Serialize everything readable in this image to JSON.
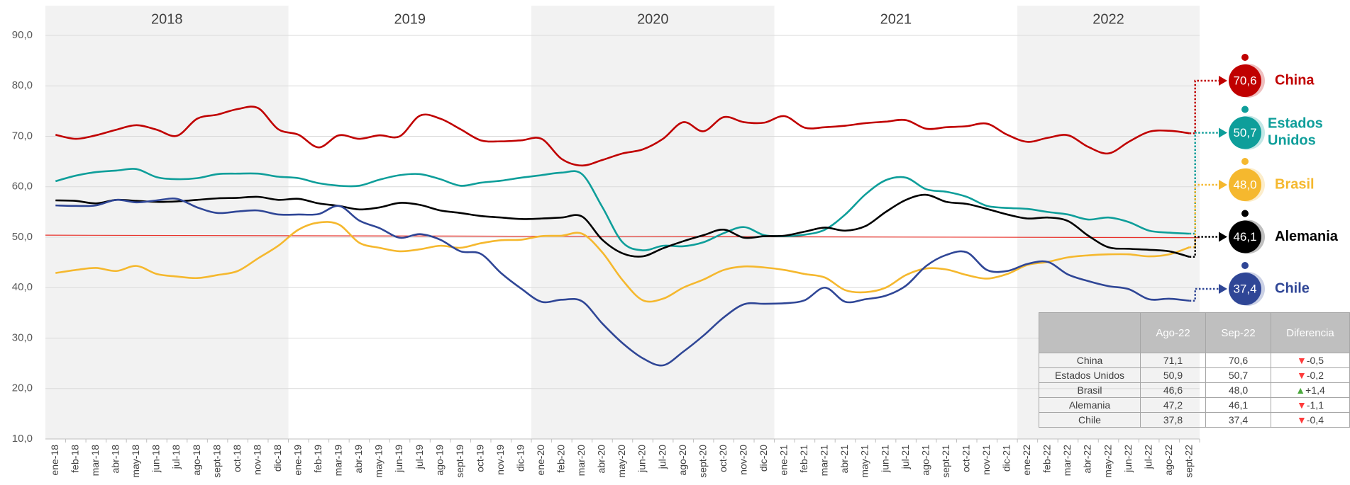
{
  "chart_data": {
    "type": "line",
    "categories": [
      "ene-18",
      "feb-18",
      "mar-18",
      "abr-18",
      "may-18",
      "jun-18",
      "jul-18",
      "ago-18",
      "sept-18",
      "oct-18",
      "nov-18",
      "dic-18",
      "ene-19",
      "feb-19",
      "mar-19",
      "abr-19",
      "may-19",
      "jun-19",
      "jul-19",
      "ago-19",
      "sept-19",
      "oct-19",
      "nov-19",
      "dic-19",
      "ene-20",
      "feb-20",
      "mar-20",
      "abr-20",
      "may-20",
      "jun-20",
      "jul-20",
      "ago-20",
      "sept-20",
      "oct-20",
      "nov-20",
      "dic-20",
      "ene-21",
      "feb-21",
      "mar-21",
      "abr-21",
      "may-21",
      "jun-21",
      "jul-21",
      "ago-21",
      "sept-21",
      "oct-21",
      "nov-21",
      "dic-21",
      "ene-22",
      "feb-22",
      "mar-22",
      "abr-22",
      "may-22",
      "jun-22",
      "jul-22",
      "ago-22",
      "sept-22"
    ],
    "year_bands": [
      {
        "label": "2018",
        "shaded": true
      },
      {
        "label": "2019",
        "shaded": false
      },
      {
        "label": "2020",
        "shaded": true
      },
      {
        "label": "2021",
        "shaded": false
      },
      {
        "label": "2022",
        "shaded": true
      }
    ],
    "ylim": [
      10,
      90
    ],
    "yticks": [
      {
        "value": 10,
        "label": "10,0"
      },
      {
        "value": 20,
        "label": "20,0"
      },
      {
        "value": 30,
        "label": "30,0"
      },
      {
        "value": 40,
        "label": "40,0"
      },
      {
        "value": 50,
        "label": "50,0"
      },
      {
        "value": 60,
        "label": "60,0"
      },
      {
        "value": 70,
        "label": "70,0"
      },
      {
        "value": 80,
        "label": "80,0"
      },
      {
        "value": 90,
        "label": "90,0"
      }
    ],
    "grid": true,
    "reference_line": {
      "color": "#e8312a",
      "values": [
        50.4,
        49.9
      ]
    },
    "series": [
      {
        "name": "China",
        "color": "#c00000",
        "last_label": "70,6",
        "values": [
          70.3,
          69.5,
          70.2,
          71.3,
          72.2,
          71.3,
          70.1,
          73.5,
          74.3,
          75.4,
          75.6,
          71.4,
          70.3,
          67.8,
          70.2,
          69.5,
          70.2,
          70.0,
          74.1,
          73.5,
          71.4,
          69.2,
          69.0,
          69.2,
          69.5,
          65.5,
          64.2,
          65.3,
          66.6,
          67.4,
          69.5,
          72.8,
          71.0,
          73.8,
          72.8,
          72.7,
          74.0,
          71.7,
          71.8,
          72.1,
          72.6,
          72.9,
          73.2,
          71.5,
          71.8,
          72.0,
          72.5,
          70.3,
          68.9,
          69.7,
          70.2,
          67.9,
          66.6,
          68.9,
          70.9,
          71.1,
          70.6
        ]
      },
      {
        "name": "Estados Unidos",
        "color": "#0e9e9a",
        "last_label": "50,7",
        "values": [
          61.1,
          62.2,
          62.9,
          63.2,
          63.5,
          61.9,
          61.5,
          61.7,
          62.5,
          62.6,
          62.6,
          62.0,
          61.7,
          60.7,
          60.2,
          60.2,
          61.4,
          62.3,
          62.5,
          61.5,
          60.2,
          60.8,
          61.2,
          61.8,
          62.3,
          62.8,
          62.5,
          56.0,
          49.0,
          47.4,
          48.3,
          48.2,
          49.0,
          50.8,
          52.0,
          50.4,
          50.2,
          50.5,
          51.5,
          54.5,
          58.5,
          61.3,
          61.8,
          59.5,
          59.0,
          58.0,
          56.2,
          55.8,
          55.6,
          55.0,
          54.5,
          53.5,
          53.9,
          53.0,
          51.3,
          50.9,
          50.7
        ]
      },
      {
        "name": "Brasil",
        "color": "#f5b82e",
        "last_label": "48,0",
        "values": [
          42.9,
          43.5,
          43.9,
          43.3,
          44.3,
          42.7,
          42.2,
          41.9,
          42.5,
          43.3,
          45.8,
          48.3,
          51.5,
          52.9,
          52.5,
          48.9,
          47.9,
          47.2,
          47.6,
          48.3,
          47.9,
          48.8,
          49.4,
          49.5,
          50.2,
          50.3,
          50.7,
          47.0,
          41.5,
          37.5,
          37.8,
          40.0,
          41.6,
          43.5,
          44.2,
          44.0,
          43.5,
          42.7,
          42.0,
          39.5,
          39.1,
          40.0,
          42.5,
          43.8,
          43.6,
          42.5,
          41.8,
          42.7,
          44.5,
          45.1,
          46.0,
          46.4,
          46.6,
          46.6,
          46.2,
          46.6,
          48.0
        ]
      },
      {
        "name": "Alemania",
        "color": "#000000",
        "last_label": "46,1",
        "values": [
          57.3,
          57.2,
          56.7,
          57.4,
          57.2,
          57.0,
          57.1,
          57.4,
          57.7,
          57.8,
          58.0,
          57.4,
          57.6,
          56.7,
          56.2,
          55.5,
          55.9,
          56.8,
          56.4,
          55.3,
          54.8,
          54.2,
          53.9,
          53.6,
          53.7,
          53.9,
          54.1,
          49.5,
          46.8,
          46.2,
          47.8,
          49.2,
          50.4,
          51.5,
          49.9,
          50.2,
          50.3,
          51.1,
          51.9,
          51.3,
          52.2,
          55.0,
          57.4,
          58.4,
          57.0,
          56.6,
          55.6,
          54.5,
          53.7,
          53.9,
          53.2,
          50.3,
          48.0,
          47.7,
          47.5,
          47.2,
          46.1
        ]
      },
      {
        "name": "Chile",
        "color": "#2f4696",
        "last_label": "37,4",
        "values": [
          56.3,
          56.2,
          56.3,
          57.4,
          56.9,
          57.3,
          57.6,
          55.9,
          54.8,
          55.1,
          55.3,
          54.5,
          54.5,
          54.6,
          56.2,
          53.3,
          51.8,
          49.9,
          50.6,
          49.5,
          47.2,
          46.7,
          42.9,
          39.8,
          37.2,
          37.6,
          37.3,
          32.9,
          29.0,
          26.0,
          24.6,
          27.3,
          30.5,
          34.1,
          36.7,
          36.8,
          36.9,
          37.5,
          40.0,
          37.2,
          37.7,
          38.4,
          40.4,
          44.3,
          46.5,
          47.0,
          43.5,
          43.3,
          44.7,
          45.1,
          42.6,
          41.3,
          40.3,
          39.7,
          37.7,
          37.8,
          37.4
        ]
      }
    ]
  },
  "table": {
    "header": [
      "Ago-22",
      "Sep-22",
      "Diferencia"
    ],
    "rows": [
      [
        "China",
        "71,1",
        "70,6",
        "-0,5"
      ],
      [
        "Estados Unidos",
        "50,9",
        "50,7",
        "-0,2"
      ],
      [
        "Brasil",
        "46,6",
        "48,0",
        "+1,4"
      ],
      [
        "Alemania",
        "47,2",
        "46,1",
        "-1,1"
      ],
      [
        "Chile",
        "37,8",
        "37,4",
        "-0,4"
      ]
    ]
  }
}
